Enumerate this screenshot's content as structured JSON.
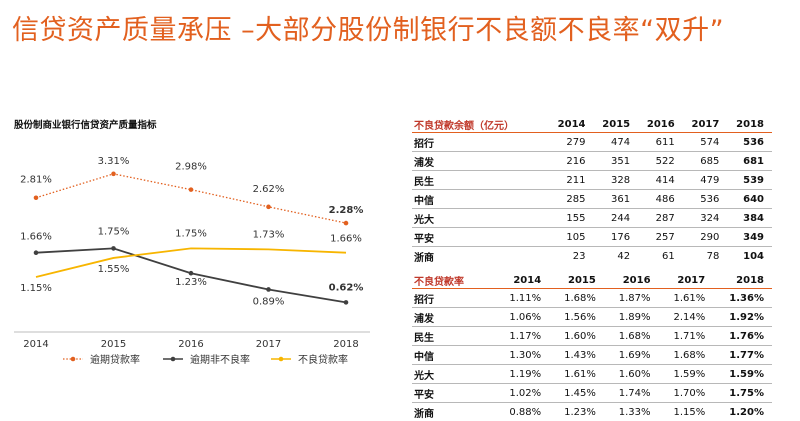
{
  "slide_title": "信贷资产质量承压 –大部分股份制银行不良额不良率“双升”",
  "chart_data": {
    "type": "line",
    "title": "股份制商业银行信贷资产质量指标",
    "x": [
      "2014",
      "2015",
      "2016",
      "2017",
      "2018"
    ],
    "ylim": [
      0,
      3.6
    ],
    "grid": false,
    "legend_position": "bottom",
    "series": [
      {
        "name": "逾期贷款率",
        "values": [
          2.81,
          3.31,
          2.98,
          2.62,
          2.28
        ],
        "labels": [
          "2.81%",
          "3.31%",
          "2.98%",
          "2.62%",
          "2.28%"
        ],
        "color": "#e2601f",
        "style": "dotted"
      },
      {
        "name": "逾期非不良率",
        "values": [
          1.66,
          1.75,
          1.23,
          0.89,
          0.62
        ],
        "labels": [
          "1.66%",
          "1.75%",
          "1.23%",
          "0.89%",
          "0.62%"
        ],
        "color": "#404040",
        "style": "solid"
      },
      {
        "name": "不良贷款率",
        "values": [
          1.15,
          1.55,
          1.75,
          1.73,
          1.66
        ],
        "labels": [
          "1.15%",
          "1.55%",
          "1.75%",
          "1.73%",
          "1.66%"
        ],
        "color": "#f7b500",
        "style": "solid"
      }
    ]
  },
  "balance_table": {
    "header": "不良贷款余额（亿元）",
    "years": [
      "2014",
      "2015",
      "2016",
      "2017",
      "2018"
    ],
    "rows": [
      {
        "bank": "招行",
        "values": [
          "279",
          "474",
          "611",
          "574",
          "536"
        ]
      },
      {
        "bank": "浦发",
        "values": [
          "216",
          "351",
          "522",
          "685",
          "681"
        ]
      },
      {
        "bank": "民生",
        "values": [
          "211",
          "328",
          "414",
          "479",
          "539"
        ]
      },
      {
        "bank": "中信",
        "values": [
          "285",
          "361",
          "486",
          "536",
          "640"
        ]
      },
      {
        "bank": "光大",
        "values": [
          "155",
          "244",
          "287",
          "324",
          "384"
        ]
      },
      {
        "bank": "平安",
        "values": [
          "105",
          "176",
          "257",
          "290",
          "349"
        ]
      },
      {
        "bank": "浙商",
        "values": [
          "23",
          "42",
          "61",
          "78",
          "104"
        ]
      }
    ]
  },
  "npl_ratio_table": {
    "header": "不良贷款率",
    "years": [
      "2014",
      "2015",
      "2016",
      "2017",
      "2018"
    ],
    "rows": [
      {
        "bank": "招行",
        "values": [
          "1.11%",
          "1.68%",
          "1.87%",
          "1.61%",
          "1.36%"
        ]
      },
      {
        "bank": "浦发",
        "values": [
          "1.06%",
          "1.56%",
          "1.89%",
          "2.14%",
          "1.92%"
        ]
      },
      {
        "bank": "民生",
        "values": [
          "1.17%",
          "1.60%",
          "1.68%",
          "1.71%",
          "1.76%"
        ]
      },
      {
        "bank": "中信",
        "values": [
          "1.30%",
          "1.43%",
          "1.69%",
          "1.68%",
          "1.77%"
        ]
      },
      {
        "bank": "光大",
        "values": [
          "1.19%",
          "1.61%",
          "1.60%",
          "1.59%",
          "1.59%"
        ]
      },
      {
        "bank": "平安",
        "values": [
          "1.02%",
          "1.45%",
          "1.74%",
          "1.70%",
          "1.75%"
        ]
      },
      {
        "bank": "浙商",
        "values": [
          "0.88%",
          "1.23%",
          "1.33%",
          "1.15%",
          "1.20%"
        ]
      }
    ]
  }
}
